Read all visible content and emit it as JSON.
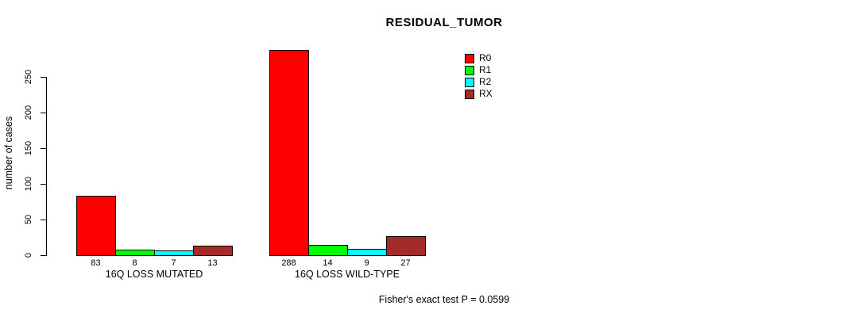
{
  "chart_data": {
    "type": "bar",
    "title": "RESIDUAL_TUMOR",
    "xlabel": "",
    "ylabel": "number of cases",
    "categories": [
      "16Q LOSS MUTATED",
      "16Q LOSS WILD-TYPE"
    ],
    "series": [
      {
        "name": "R0",
        "color": "#fe0000",
        "values": [
          83,
          288
        ]
      },
      {
        "name": "R1",
        "color": "#00ff00",
        "values": [
          8,
          14
        ]
      },
      {
        "name": "R2",
        "color": "#00ffff",
        "values": [
          7,
          9
        ]
      },
      {
        "name": "RX",
        "color": "#a52a2a",
        "values": [
          13,
          27
        ]
      }
    ],
    "yticks": [
      0,
      50,
      100,
      150,
      200,
      250
    ],
    "ylim": [
      0,
      290
    ],
    "grid": false,
    "legend_position": "right",
    "bar_value_labels": true,
    "annotation": "Fisher's exact test P = 0.0599"
  }
}
